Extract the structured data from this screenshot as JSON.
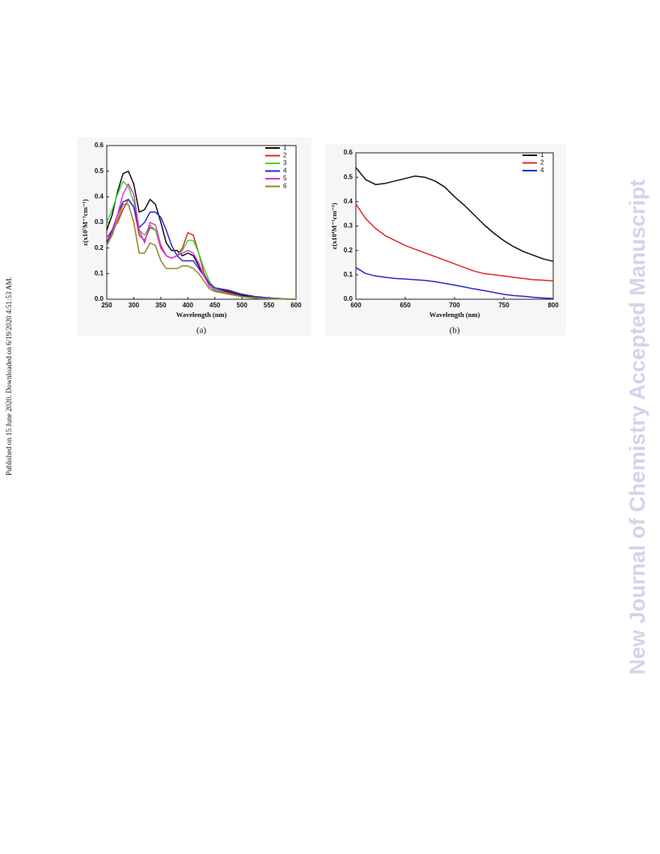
{
  "page": {
    "side_note": "Published on 15 June 2020. Downloaded on 6/19/2020 4:51:53 AM.",
    "watermark": "New Journal of Chemistry Accepted Manuscript"
  },
  "chart_data": [
    {
      "type": "line",
      "caption": "(a)",
      "x_label": "Wavelength (nm)",
      "y_label": "ε(x10⁵M⁻¹cm⁻¹)",
      "x": [
        250,
        260,
        270,
        280,
        290,
        300,
        310,
        320,
        330,
        340,
        350,
        360,
        370,
        380,
        390,
        400,
        410,
        420,
        430,
        440,
        450,
        475,
        500,
        525,
        550,
        575,
        600
      ],
      "xlim": [
        250,
        600
      ],
      "xticks": [
        250,
        300,
        350,
        400,
        450,
        500,
        550,
        600
      ],
      "ylim": [
        0,
        0.6
      ],
      "yticks": [
        {
          "value": 0,
          "label": "0.0"
        },
        0.1,
        0.2,
        0.3,
        0.4,
        0.5,
        0.6
      ],
      "legend": "upper right",
      "series": [
        {
          "name": "1",
          "color": "#111111",
          "values": [
            0.27,
            0.33,
            0.42,
            0.49,
            0.5,
            0.45,
            0.34,
            0.35,
            0.39,
            0.37,
            0.3,
            0.22,
            0.19,
            0.19,
            0.17,
            0.18,
            0.17,
            0.13,
            0.09,
            0.06,
            0.04,
            0.03,
            0.015,
            0.008,
            0.004,
            0.001,
            0
          ]
        },
        {
          "name": "2",
          "color": "#e0282a",
          "values": [
            0.24,
            0.27,
            0.3,
            0.35,
            0.39,
            0.36,
            0.25,
            0.23,
            0.28,
            0.27,
            0.2,
            0.17,
            0.16,
            0.17,
            0.2,
            0.26,
            0.25,
            0.18,
            0.1,
            0.06,
            0.04,
            0.025,
            0.01,
            0.005,
            0.002,
            0.001,
            0
          ]
        },
        {
          "name": "3",
          "color": "#3ddc3a",
          "values": [
            0.3,
            0.35,
            0.41,
            0.46,
            0.44,
            0.38,
            0.27,
            0.25,
            0.29,
            0.27,
            0.21,
            0.17,
            0.16,
            0.17,
            0.19,
            0.23,
            0.23,
            0.18,
            0.12,
            0.07,
            0.04,
            0.02,
            0.01,
            0.005,
            0.002,
            0.001,
            0
          ]
        },
        {
          "name": "4",
          "color": "#2a2ad0",
          "values": [
            0.22,
            0.27,
            0.33,
            0.38,
            0.39,
            0.36,
            0.28,
            0.3,
            0.34,
            0.34,
            0.32,
            0.27,
            0.21,
            0.17,
            0.15,
            0.15,
            0.15,
            0.12,
            0.09,
            0.06,
            0.045,
            0.035,
            0.02,
            0.01,
            0.005,
            0.002,
            0
          ]
        },
        {
          "name": "5",
          "color": "#e030e0",
          "values": [
            0.21,
            0.26,
            0.33,
            0.41,
            0.45,
            0.41,
            0.27,
            0.22,
            0.3,
            0.29,
            0.21,
            0.17,
            0.16,
            0.17,
            0.18,
            0.19,
            0.18,
            0.14,
            0.09,
            0.05,
            0.035,
            0.02,
            0.01,
            0.004,
            0.002,
            0.001,
            0
          ]
        },
        {
          "name": "6",
          "color": "#8a8a2a",
          "values": [
            0.21,
            0.25,
            0.31,
            0.37,
            0.37,
            0.3,
            0.18,
            0.18,
            0.22,
            0.21,
            0.15,
            0.12,
            0.12,
            0.12,
            0.13,
            0.13,
            0.12,
            0.1,
            0.07,
            0.04,
            0.03,
            0.02,
            0.01,
            0.004,
            0.002,
            0.001,
            0
          ]
        }
      ]
    },
    {
      "type": "line",
      "caption": "(b)",
      "x_label": "Wavelength (nm)",
      "y_label": "ε(x10⁴M⁻¹cm⁻¹)",
      "x": [
        600,
        610,
        620,
        630,
        640,
        650,
        660,
        670,
        680,
        690,
        700,
        710,
        720,
        730,
        740,
        750,
        760,
        770,
        780,
        790,
        800
      ],
      "xlim": [
        600,
        800
      ],
      "xticks": [
        600,
        650,
        700,
        750,
        800
      ],
      "ylim": [
        0,
        0.6
      ],
      "yticks": [
        {
          "value": 0,
          "label": "0.0"
        },
        0.1,
        0.2,
        0.3,
        0.4,
        0.5,
        0.6
      ],
      "legend": "upper right",
      "series": [
        {
          "name": "1",
          "color": "#111111",
          "values": [
            0.54,
            0.49,
            0.47,
            0.475,
            0.485,
            0.495,
            0.505,
            0.5,
            0.485,
            0.46,
            0.42,
            0.385,
            0.345,
            0.305,
            0.27,
            0.24,
            0.215,
            0.195,
            0.18,
            0.165,
            0.155
          ]
        },
        {
          "name": "2",
          "color": "#e0282a",
          "values": [
            0.39,
            0.33,
            0.29,
            0.26,
            0.24,
            0.22,
            0.205,
            0.19,
            0.175,
            0.16,
            0.145,
            0.13,
            0.115,
            0.105,
            0.1,
            0.095,
            0.09,
            0.085,
            0.08,
            0.078,
            0.075
          ]
        },
        {
          "name": "4",
          "color": "#2a2ad0",
          "values": [
            0.13,
            0.105,
            0.095,
            0.09,
            0.085,
            0.083,
            0.08,
            0.077,
            0.072,
            0.065,
            0.058,
            0.05,
            0.042,
            0.035,
            0.028,
            0.02,
            0.015,
            0.012,
            0.008,
            0.005,
            0.003
          ]
        }
      ]
    }
  ]
}
